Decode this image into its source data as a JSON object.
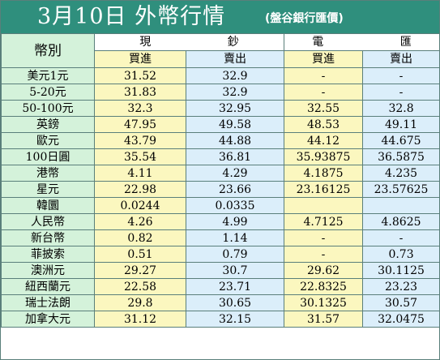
{
  "title": "3月10日 外幣行情",
  "subtitle": "(盤谷銀行匯價)",
  "header": {
    "currency_label": "幣別",
    "cash_group": "現 鈔",
    "wire_group": "電 匯",
    "buy": "買進",
    "sell": "賣出"
  },
  "rows": [
    {
      "currency": "美元1元",
      "cash_buy": "31.52",
      "cash_sell": "32.9",
      "wire_buy": "-",
      "wire_sell": "-"
    },
    {
      "currency": "5-20元",
      "cash_buy": "31.83",
      "cash_sell": "32.9",
      "wire_buy": "-",
      "wire_sell": "-"
    },
    {
      "currency": "50-100元",
      "cash_buy": "32.3",
      "cash_sell": "32.95",
      "wire_buy": "32.55",
      "wire_sell": "32.8"
    },
    {
      "currency": "英鎊",
      "cash_buy": "47.95",
      "cash_sell": "49.58",
      "wire_buy": "48.53",
      "wire_sell": "49.11"
    },
    {
      "currency": "歐元",
      "cash_buy": "43.79",
      "cash_sell": "44.88",
      "wire_buy": "44.12",
      "wire_sell": "44.675"
    },
    {
      "currency": "100日圓",
      "cash_buy": "35.54",
      "cash_sell": "36.81",
      "wire_buy": "35.93875",
      "wire_sell": "36.5875"
    },
    {
      "currency": "港幣",
      "cash_buy": "4.11",
      "cash_sell": "4.29",
      "wire_buy": "4.1875",
      "wire_sell": "4.235"
    },
    {
      "currency": "星元",
      "cash_buy": "22.98",
      "cash_sell": "23.66",
      "wire_buy": "23.16125",
      "wire_sell": "23.57625"
    },
    {
      "currency": "韓圜",
      "cash_buy": "0.0244",
      "cash_sell": "0.0335",
      "wire_buy": "",
      "wire_sell": ""
    },
    {
      "currency": "人民幣",
      "cash_buy": "4.26",
      "cash_sell": "4.99",
      "wire_buy": "4.7125",
      "wire_sell": "4.8625"
    },
    {
      "currency": "新台幣",
      "cash_buy": "0.82",
      "cash_sell": "1.14",
      "wire_buy": "-",
      "wire_sell": "-"
    },
    {
      "currency": "菲披索",
      "cash_buy": "0.51",
      "cash_sell": "0.79",
      "wire_buy": "-",
      "wire_sell": "0.73"
    },
    {
      "currency": "澳洲元",
      "cash_buy": "29.27",
      "cash_sell": "30.7",
      "wire_buy": "29.62",
      "wire_sell": "30.1125"
    },
    {
      "currency": "紐西蘭元",
      "cash_buy": "22.58",
      "cash_sell": "23.71",
      "wire_buy": "22.8325",
      "wire_sell": "23.23"
    },
    {
      "currency": "瑞士法朗",
      "cash_buy": "29.8",
      "cash_sell": "30.65",
      "wire_buy": "30.1325",
      "wire_sell": "30.57"
    },
    {
      "currency": "加拿大元",
      "cash_buy": "31.12",
      "cash_sell": "32.15",
      "wire_buy": "31.57",
      "wire_sell": "32.0475"
    }
  ],
  "colors": {
    "title_bar": "#2f8f7d",
    "label_bg": "#d4f2da",
    "buy_bg": "#fbf7bf",
    "sell_bg": "#dbeefa",
    "grid": "#5a7f7b"
  }
}
